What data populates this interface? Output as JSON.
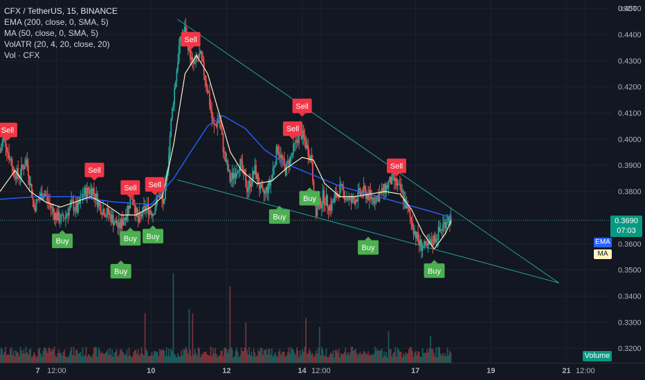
{
  "header": {
    "symbol_line": "CFX / TetherUS, 15, BINANCE",
    "indicators": [
      "EMA (200, close, 0, SMA, 5)",
      "MA (50, close, 0, SMA, 5)",
      "VolATR (20, 4, 20, close, 20)",
      "Vol · CFX"
    ]
  },
  "price_tag": {
    "price": "0.3690",
    "countdown": "07:03"
  },
  "indicator_tags": {
    "ema": "EMA",
    "ma": "MA",
    "volume": "Volume"
  },
  "colors": {
    "background": "#131722",
    "up": "#26a69a",
    "down": "#ef5350",
    "ema": "#2962ff",
    "ma": "#fff3c4",
    "trend": "#26a69a",
    "buy": "#4caf50",
    "sell": "#f23645"
  },
  "chart_data": {
    "type": "candlestick",
    "yaxis": {
      "unit": "USDT",
      "range": [
        0.3145,
        0.4532
      ],
      "ticks": [
        "0.4500",
        "0.4400",
        "0.4300",
        "0.4200",
        "0.4100",
        "0.4000",
        "0.3900",
        "0.3800",
        "0.3600",
        "0.3500",
        "0.3400",
        "0.3300",
        "0.3200"
      ]
    },
    "xaxis": {
      "range_days": [
        6.0,
        22.2
      ],
      "ticks": [
        {
          "label": "7",
          "day": 7
        },
        {
          "label": "12:00",
          "day": 7.5
        },
        {
          "label": "10",
          "day": 10
        },
        {
          "label": "12",
          "day": 12
        },
        {
          "label": "14",
          "day": 14
        },
        {
          "label": "12:00",
          "day": 14.5
        },
        {
          "label": "17",
          "day": 17
        },
        {
          "label": "19",
          "day": 19
        },
        {
          "label": "21",
          "day": 21
        },
        {
          "label": "12:00",
          "day": 21.5
        }
      ]
    },
    "price_path": [
      [
        6.0,
        0.395
      ],
      [
        6.1,
        0.401
      ],
      [
        6.35,
        0.388
      ],
      [
        6.5,
        0.386
      ],
      [
        6.7,
        0.392
      ],
      [
        6.9,
        0.374
      ],
      [
        7.15,
        0.38
      ],
      [
        7.45,
        0.371
      ],
      [
        7.65,
        0.369
      ],
      [
        7.9,
        0.375
      ],
      [
        8.05,
        0.373
      ],
      [
        8.2,
        0.379
      ],
      [
        8.45,
        0.381
      ],
      [
        8.65,
        0.374
      ],
      [
        8.9,
        0.371
      ],
      [
        9.15,
        0.366
      ],
      [
        9.35,
        0.372
      ],
      [
        9.5,
        0.379
      ],
      [
        9.65,
        0.368
      ],
      [
        9.85,
        0.374
      ],
      [
        10.05,
        0.372
      ],
      [
        10.2,
        0.379
      ],
      [
        10.35,
        0.375
      ],
      [
        10.55,
        0.41
      ],
      [
        10.75,
        0.436
      ],
      [
        10.9,
        0.442
      ],
      [
        11.1,
        0.428
      ],
      [
        11.3,
        0.432
      ],
      [
        11.5,
        0.419
      ],
      [
        11.65,
        0.404
      ],
      [
        11.8,
        0.408
      ],
      [
        11.95,
        0.393
      ],
      [
        12.1,
        0.384
      ],
      [
        12.35,
        0.391
      ],
      [
        12.55,
        0.381
      ],
      [
        12.75,
        0.388
      ],
      [
        12.95,
        0.378
      ],
      [
        13.15,
        0.383
      ],
      [
        13.35,
        0.397
      ],
      [
        13.55,
        0.388
      ],
      [
        13.75,
        0.395
      ],
      [
        13.95,
        0.403
      ],
      [
        14.1,
        0.398
      ],
      [
        14.25,
        0.392
      ],
      [
        14.35,
        0.371
      ],
      [
        14.55,
        0.378
      ],
      [
        14.75,
        0.374
      ],
      [
        15.0,
        0.381
      ],
      [
        15.3,
        0.376
      ],
      [
        15.6,
        0.38
      ],
      [
        15.9,
        0.377
      ],
      [
        16.15,
        0.38
      ],
      [
        16.4,
        0.385
      ],
      [
        16.65,
        0.379
      ],
      [
        16.9,
        0.368
      ],
      [
        17.1,
        0.36
      ],
      [
        17.3,
        0.358
      ],
      [
        17.5,
        0.362
      ],
      [
        17.7,
        0.366
      ],
      [
        17.85,
        0.37
      ],
      [
        17.95,
        0.369
      ]
    ],
    "ema200_path": [
      [
        6.0,
        0.377
      ],
      [
        7.0,
        0.378
      ],
      [
        8.0,
        0.378
      ],
      [
        9.0,
        0.376
      ],
      [
        10.0,
        0.375
      ],
      [
        10.6,
        0.385
      ],
      [
        11.0,
        0.394
      ],
      [
        11.5,
        0.405
      ],
      [
        11.9,
        0.409
      ],
      [
        12.5,
        0.404
      ],
      [
        13.0,
        0.396
      ],
      [
        13.5,
        0.391
      ],
      [
        14.0,
        0.388
      ],
      [
        14.5,
        0.385
      ],
      [
        15.0,
        0.382
      ],
      [
        15.5,
        0.38
      ],
      [
        16.0,
        0.378
      ],
      [
        16.5,
        0.376
      ],
      [
        17.0,
        0.374
      ],
      [
        17.5,
        0.372
      ],
      [
        17.95,
        0.37
      ]
    ],
    "ma50_path": [
      [
        6.0,
        0.38
      ],
      [
        6.4,
        0.388
      ],
      [
        6.8,
        0.38
      ],
      [
        7.2,
        0.376
      ],
      [
        7.6,
        0.374
      ],
      [
        8.0,
        0.376
      ],
      [
        8.4,
        0.378
      ],
      [
        8.8,
        0.375
      ],
      [
        9.2,
        0.371
      ],
      [
        9.6,
        0.371
      ],
      [
        10.0,
        0.374
      ],
      [
        10.3,
        0.378
      ],
      [
        10.6,
        0.398
      ],
      [
        10.9,
        0.425
      ],
      [
        11.2,
        0.432
      ],
      [
        11.5,
        0.425
      ],
      [
        11.8,
        0.41
      ],
      [
        12.1,
        0.395
      ],
      [
        12.4,
        0.388
      ],
      [
        12.8,
        0.383
      ],
      [
        13.2,
        0.384
      ],
      [
        13.6,
        0.389
      ],
      [
        14.0,
        0.393
      ],
      [
        14.3,
        0.392
      ],
      [
        14.6,
        0.383
      ],
      [
        15.0,
        0.378
      ],
      [
        15.4,
        0.378
      ],
      [
        15.8,
        0.379
      ],
      [
        16.2,
        0.38
      ],
      [
        16.6,
        0.379
      ],
      [
        16.9,
        0.373
      ],
      [
        17.2,
        0.364
      ],
      [
        17.5,
        0.358
      ],
      [
        17.8,
        0.364
      ],
      [
        17.95,
        0.369
      ]
    ],
    "trendlines": [
      {
        "from": [
          10.7,
          0.4458
        ],
        "to": [
          20.8,
          0.345
        ]
      },
      {
        "from": [
          10.7,
          0.3844
        ],
        "to": [
          20.8,
          0.345
        ]
      }
    ],
    "signals": [
      {
        "type": "Sell",
        "day": 6.2,
        "price": 0.4035
      },
      {
        "type": "Sell",
        "day": 8.5,
        "price": 0.3882
      },
      {
        "type": "Sell",
        "day": 9.45,
        "price": 0.3815
      },
      {
        "type": "Sell",
        "day": 10.1,
        "price": 0.3827
      },
      {
        "type": "Sell",
        "day": 11.05,
        "price": 0.4382
      },
      {
        "type": "Sell",
        "day": 13.75,
        "price": 0.404
      },
      {
        "type": "Sell",
        "day": 14.0,
        "price": 0.4127
      },
      {
        "type": "Sell",
        "day": 16.5,
        "price": 0.3898
      },
      {
        "type": "Buy",
        "day": 7.65,
        "price": 0.3611
      },
      {
        "type": "Buy",
        "day": 9.2,
        "price": 0.3495
      },
      {
        "type": "Buy",
        "day": 9.45,
        "price": 0.3621
      },
      {
        "type": "Buy",
        "day": 10.05,
        "price": 0.3629
      },
      {
        "type": "Buy",
        "day": 13.4,
        "price": 0.3704
      },
      {
        "type": "Buy",
        "day": 14.2,
        "price": 0.3774
      },
      {
        "type": "Buy",
        "day": 15.75,
        "price": 0.3586
      },
      {
        "type": "Buy",
        "day": 17.5,
        "price": 0.3497
      }
    ],
    "volume_spikes": [
      {
        "day": 10.6,
        "rel": 1.0
      },
      {
        "day": 11.0,
        "rel": 0.6
      },
      {
        "day": 11.1,
        "rel": 0.55
      },
      {
        "day": 9.85,
        "rel": 0.55
      },
      {
        "day": 12.1,
        "rel": 0.85
      },
      {
        "day": 12.5,
        "rel": 0.45
      },
      {
        "day": 14.1,
        "rel": 0.5
      },
      {
        "day": 14.45,
        "rel": 0.4
      },
      {
        "day": 16.3,
        "rel": 0.35
      },
      {
        "day": 17.4,
        "rel": 0.3
      }
    ]
  }
}
